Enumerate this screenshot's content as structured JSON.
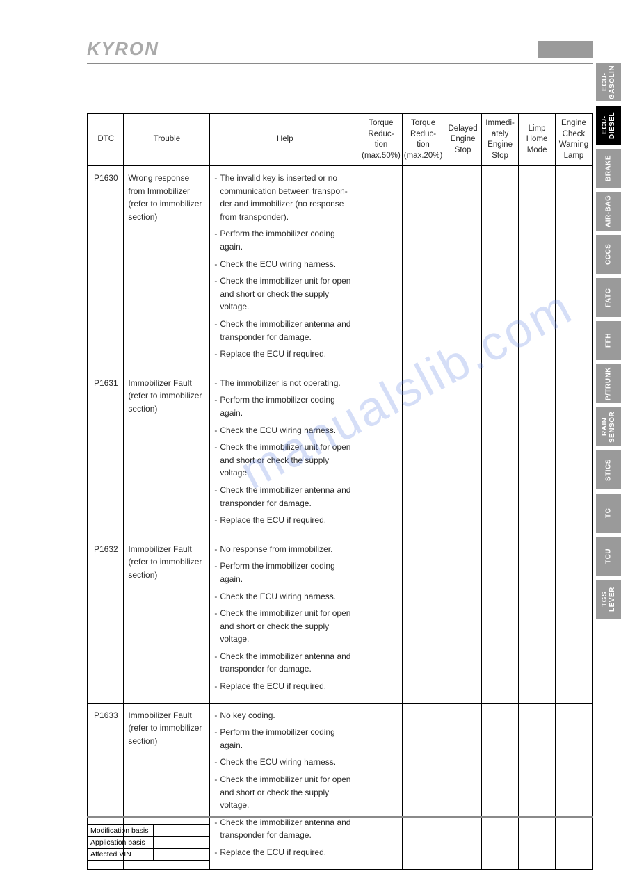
{
  "logo": "KYRON",
  "watermark": "manualslib.com",
  "table": {
    "headers": {
      "dtc": "DTC",
      "trouble": "Trouble",
      "help": "Help",
      "col1": "Torque Reduc-tion (max.50%)",
      "col2": "Torque Reduc-tion (max.20%)",
      "col3": "Delayed Engine Stop",
      "col4": "Immedi-ately Engine Stop",
      "col5": "Limp Home Mode",
      "col6": "Engine Check Warning Lamp"
    },
    "rows": [
      {
        "dtc": "P1630",
        "trouble": "Wrong response from Immobilizer (refer to immobilizer section)",
        "help": [
          "The invalid key is inserted or no communication between transpon-der and immobilizer (no response from transponder).",
          "Perform the immobilizer coding again.",
          "Check the ECU wiring harness.",
          "Check the immobilizer unit for open and short or check the supply voltage.",
          "Check the immobilizer antenna and transponder for damage.",
          "Replace the ECU if required."
        ]
      },
      {
        "dtc": "P1631",
        "trouble": "Immobilizer Fault (refer to immobilizer section)",
        "help": [
          "The immobilizer is not operating.",
          "Perform the immobilizer coding again.",
          "Check the ECU wiring harness.",
          "Check the immobilizer unit for open and short or check the supply voltage.",
          "Check the immobilizer antenna and transponder for damage.",
          "Replace the ECU if required."
        ]
      },
      {
        "dtc": "P1632",
        "trouble": "Immobilizer Fault (refer to immobilizer section)",
        "help": [
          "No response from immobilizer.",
          "Perform the immobilizer coding again.",
          "Check the ECU wiring harness.",
          "Check the immobilizer unit for open and short or check the supply voltage.",
          "Check the immobilizer antenna and transponder for damage.",
          "Replace the ECU if required."
        ]
      },
      {
        "dtc": "P1633",
        "trouble": "Immobilizer Fault (refer to immobilizer section)",
        "help": [
          "No key coding.",
          "Perform the immobilizer coding again.",
          "Check the ECU wiring harness.",
          "Check the immobilizer unit for open and short or check the supply voltage.",
          "Check the immobilizer antenna and transponder for damage.",
          "Replace the ECU if required."
        ]
      }
    ]
  },
  "side_tabs": [
    {
      "label": "ECU-GASOLIN",
      "active": false
    },
    {
      "label": "ECU-DIESEL",
      "active": true
    },
    {
      "label": "BRAKE",
      "active": false
    },
    {
      "label": "AIR-BAG",
      "active": false
    },
    {
      "label": "CCCS",
      "active": false
    },
    {
      "label": "FATC",
      "active": false
    },
    {
      "label": "FFH",
      "active": false
    },
    {
      "label": "P/TRUNK",
      "active": false
    },
    {
      "label": "RAIN SENSOR",
      "active": false
    },
    {
      "label": "STICS",
      "active": false
    },
    {
      "label": "TC",
      "active": false
    },
    {
      "label": "TCU",
      "active": false
    },
    {
      "label": "TGS LEVER",
      "active": false
    }
  ],
  "footer": {
    "rows": [
      "Modification basis",
      "Application basis",
      "Affected VIN"
    ]
  }
}
